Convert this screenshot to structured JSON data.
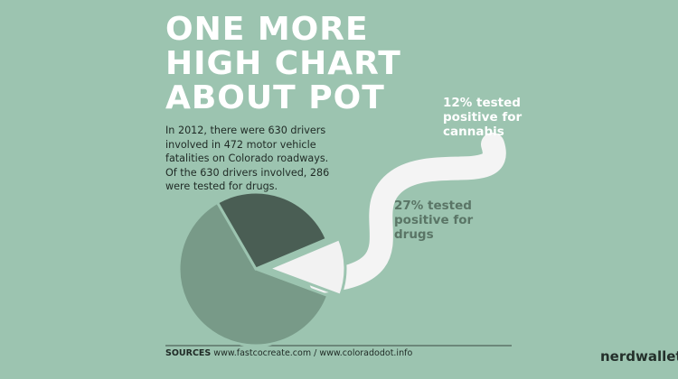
{
  "chart_data": {
    "type": "pie",
    "title": [
      "ONE MORE",
      "HIGH CHART",
      "ABOUT POT"
    ],
    "values": [
      61,
      27,
      12
    ],
    "value_labels": [
      null,
      "27% tested positive for drugs",
      "12% tested positive for cannabis"
    ],
    "colors": [
      "#789a88",
      "#4a5e54",
      "#f2f2f2"
    ],
    "explode": [
      0,
      0,
      1
    ]
  },
  "body": [
    "In 2012, there were 630 drivers",
    "involved in 472 motor vehicle",
    "fatalities on Colorado roadways.",
    "Of the 630 drivers involved, 286",
    "were tested for drugs."
  ],
  "sources": {
    "label": "SOURCES",
    "text": "www.fastcocreate.com / www.coloradodot.info"
  },
  "brand": "nerdwallet"
}
